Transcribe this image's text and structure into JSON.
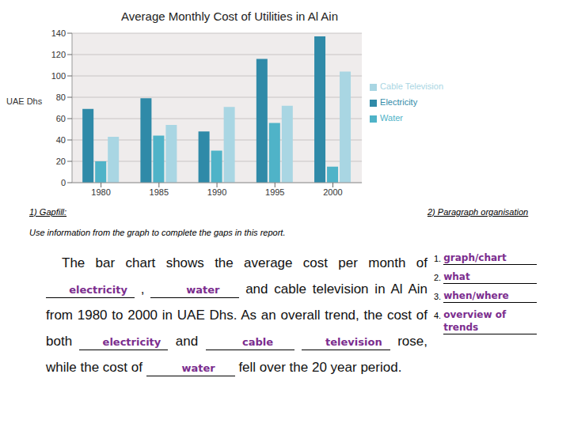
{
  "chart_data": {
    "type": "bar",
    "title": "Average Monthly Cost of Utilities in Al Ain",
    "y_label": "UAE Dhs",
    "categories": [
      "1980",
      "1985",
      "1990",
      "1995",
      "2000"
    ],
    "series": [
      {
        "name": "Electricity",
        "color": "#2f8aa8",
        "values": [
          69,
          79,
          48,
          116,
          137
        ]
      },
      {
        "name": "Water",
        "color": "#4fb3c8",
        "values": [
          20,
          44,
          30,
          56,
          15
        ]
      },
      {
        "name": "Cable Television",
        "color": "#a9d6e3",
        "values": [
          43,
          54,
          71,
          72,
          104
        ]
      }
    ],
    "ylim": [
      0,
      140
    ],
    "yticks": [
      0,
      20,
      40,
      60,
      80,
      100,
      120,
      140
    ],
    "grid": true,
    "legend": "right"
  },
  "worksheet": {
    "gapfill": {
      "heading": "1) Gapfill:",
      "instruction": "Use information from the graph to complete the gaps in this report.",
      "paragraph": [
        {
          "text": "The bar chart shows the average cost per month of"
        },
        {
          "gap": "electricity"
        },
        {
          "text": ","
        },
        {
          "gap": "water"
        },
        {
          "text": "and cable television in Al Ain from 1980 to 2000 in UAE Dhs. As an overall trend, the cost of both"
        },
        {
          "gap": "electricity"
        },
        {
          "text": "and"
        },
        {
          "gap": "cable"
        },
        {
          "gap": "television"
        },
        {
          "text": "rose, while the cost of"
        },
        {
          "gap": "water"
        },
        {
          "text": "fell over the 20 year period."
        }
      ]
    },
    "organisation": {
      "heading": "2) Paragraph organisation",
      "items": [
        {
          "number": "1.",
          "answer": "graph/chart"
        },
        {
          "number": "2.",
          "answer": "what"
        },
        {
          "number": "3.",
          "answer": "when/where"
        },
        {
          "number": "4.",
          "answer": "overview of trends"
        }
      ]
    }
  }
}
